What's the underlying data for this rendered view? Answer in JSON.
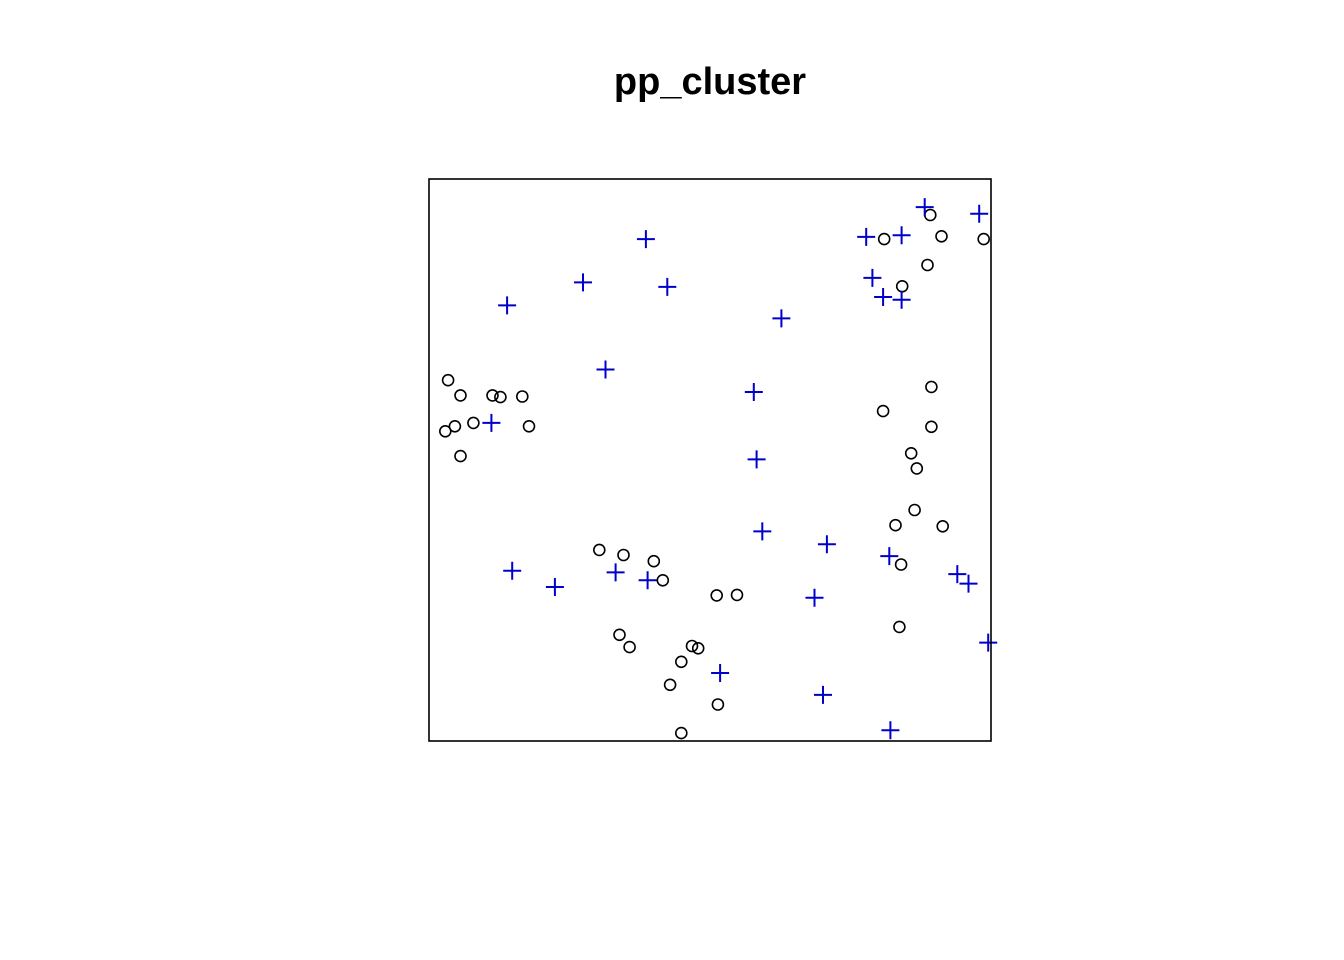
{
  "chart_data": {
    "type": "scatter",
    "title": "pp_cluster",
    "xlim": [
      0,
      1
    ],
    "ylim": [
      0,
      1
    ],
    "grid": false,
    "legend": "none",
    "series": [
      {
        "marker": "circle",
        "color": "#000000",
        "points": [
          [
            0.892,
            0.936
          ],
          [
            0.81,
            0.893
          ],
          [
            0.912,
            0.898
          ],
          [
            0.987,
            0.893
          ],
          [
            0.887,
            0.847
          ],
          [
            0.842,
            0.809
          ],
          [
            0.034,
            0.642
          ],
          [
            0.056,
            0.615
          ],
          [
            0.113,
            0.615
          ],
          [
            0.127,
            0.612
          ],
          [
            0.166,
            0.613
          ],
          [
            0.079,
            0.566
          ],
          [
            0.046,
            0.56
          ],
          [
            0.029,
            0.551
          ],
          [
            0.178,
            0.56
          ],
          [
            0.056,
            0.507
          ],
          [
            0.894,
            0.63
          ],
          [
            0.808,
            0.587
          ],
          [
            0.894,
            0.559
          ],
          [
            0.858,
            0.512
          ],
          [
            0.868,
            0.485
          ],
          [
            0.864,
            0.411
          ],
          [
            0.914,
            0.382
          ],
          [
            0.83,
            0.384
          ],
          [
            0.84,
            0.314
          ],
          [
            0.837,
            0.203
          ],
          [
            0.303,
            0.34
          ],
          [
            0.346,
            0.331
          ],
          [
            0.4,
            0.32
          ],
          [
            0.416,
            0.286
          ],
          [
            0.512,
            0.259
          ],
          [
            0.548,
            0.26
          ],
          [
            0.339,
            0.189
          ],
          [
            0.357,
            0.167
          ],
          [
            0.468,
            0.169
          ],
          [
            0.479,
            0.165
          ],
          [
            0.449,
            0.141
          ],
          [
            0.429,
            0.1
          ],
          [
            0.514,
            0.065
          ],
          [
            0.449,
            0.014
          ]
        ]
      },
      {
        "marker": "plus",
        "color": "#0000cc",
        "points": [
          [
            0.882,
            0.95
          ],
          [
            0.979,
            0.938
          ],
          [
            0.386,
            0.893
          ],
          [
            0.778,
            0.897
          ],
          [
            0.841,
            0.9
          ],
          [
            0.274,
            0.816
          ],
          [
            0.424,
            0.808
          ],
          [
            0.139,
            0.775
          ],
          [
            0.789,
            0.824
          ],
          [
            0.808,
            0.79
          ],
          [
            0.841,
            0.785
          ],
          [
            0.627,
            0.752
          ],
          [
            0.314,
            0.661
          ],
          [
            0.578,
            0.621
          ],
          [
            0.583,
            0.501
          ],
          [
            0.111,
            0.566
          ],
          [
            0.593,
            0.373
          ],
          [
            0.708,
            0.35
          ],
          [
            0.819,
            0.329
          ],
          [
            0.94,
            0.297
          ],
          [
            0.96,
            0.28
          ],
          [
            0.148,
            0.303
          ],
          [
            0.224,
            0.274
          ],
          [
            0.332,
            0.3
          ],
          [
            0.389,
            0.286
          ],
          [
            0.686,
            0.255
          ],
          [
            0.995,
            0.175
          ],
          [
            0.518,
            0.121
          ],
          [
            0.701,
            0.082
          ],
          [
            0.821,
            0.019
          ]
        ]
      }
    ]
  }
}
